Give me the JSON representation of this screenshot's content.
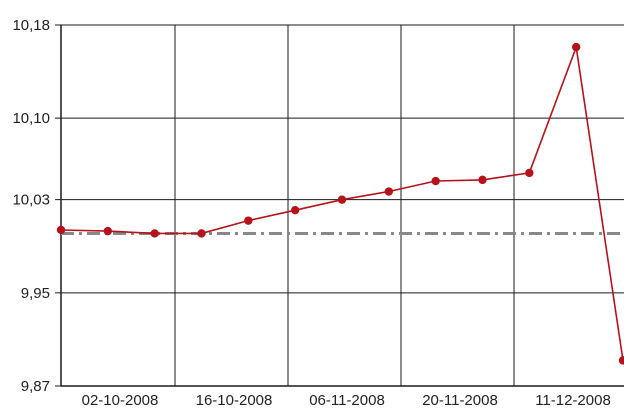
{
  "chart_data": {
    "type": "line",
    "title": "",
    "xlabel": "",
    "ylabel": "",
    "ylim": [
      9.87,
      10.18
    ],
    "y_ticks": [
      9.87,
      9.95,
      10.03,
      10.1,
      10.18
    ],
    "y_tick_labels": [
      "9,87",
      "9,95",
      "10,03",
      "10,10",
      "10,18"
    ],
    "x_tick_labels": [
      "02-10-2008",
      "16-10-2008",
      "06-11-2008",
      "20-11-2008",
      "11-12-2008"
    ],
    "grid": true,
    "series": [
      {
        "values": [
          10.004,
          10.003,
          10.001,
          10.001,
          10.012,
          10.021,
          10.03,
          10.037,
          10.046,
          10.047,
          10.053,
          10.161,
          9.892
        ],
        "color": "#b5121b",
        "marker": "circle"
      }
    ],
    "reference_line": {
      "value": 10.001,
      "style": "dash-dot",
      "color": "#888888"
    }
  }
}
